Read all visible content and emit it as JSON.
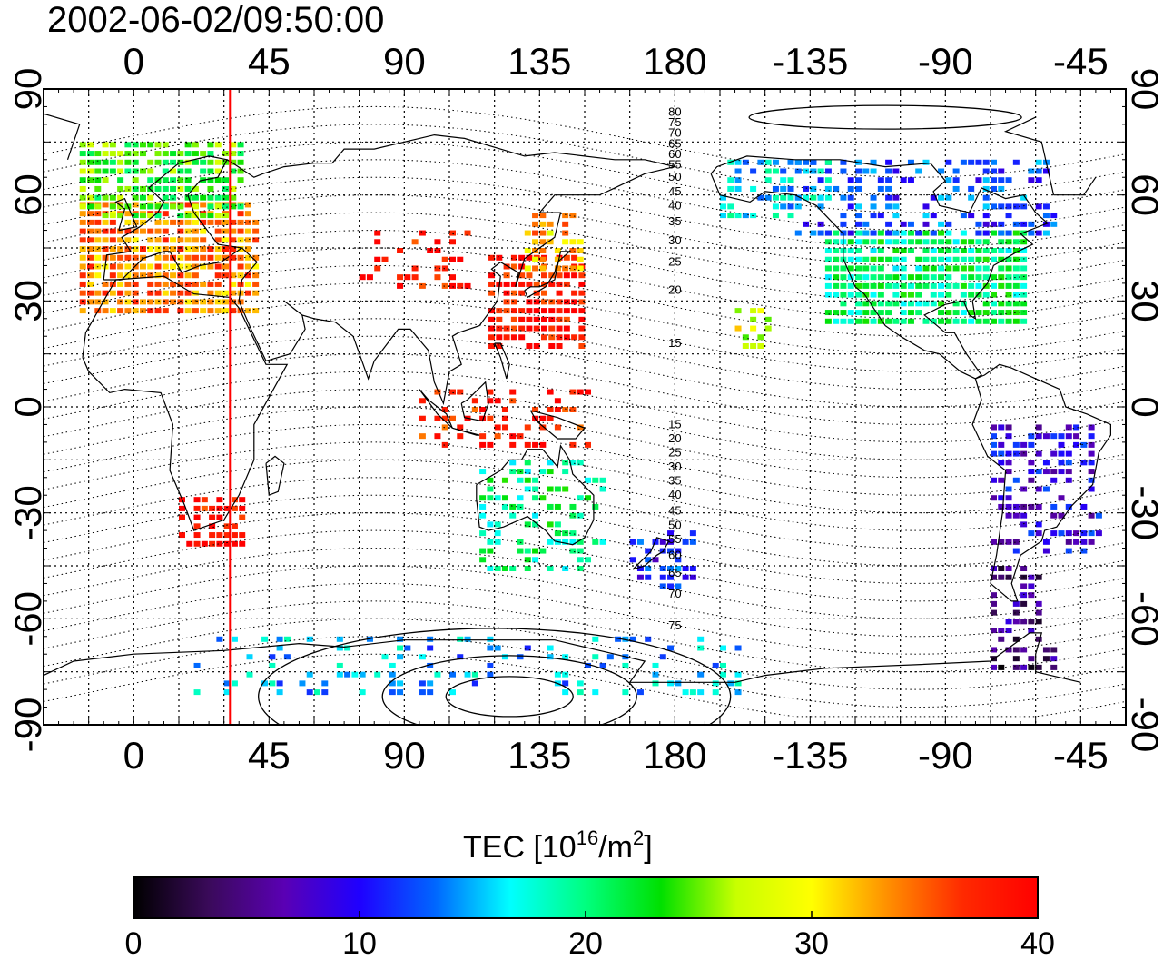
{
  "title": "2002-06-02/09:50:00",
  "map": {
    "projection": "equirectangular",
    "lon_center": 150,
    "x_ticks": [
      "0",
      "45",
      "90",
      "135",
      "180",
      "-135",
      "-90",
      "-45"
    ],
    "y_ticks_left": [
      "90",
      "60",
      "30",
      "0",
      "-30",
      "-60",
      "-90"
    ],
    "y_ticks_right": [
      "90",
      "60",
      "30",
      "0",
      "-30",
      "-60",
      "-90"
    ],
    "grid": "dotted, every 15 degrees",
    "meridian_marker": {
      "lon": 32,
      "color": "#ff0000"
    },
    "contour_labels_north": [
      "80",
      "75",
      "70",
      "65",
      "60",
      "55",
      "50",
      "45",
      "40",
      "35",
      "30",
      "25",
      "20",
      "15"
    ],
    "contour_labels_south": [
      "15",
      "20",
      "25",
      "30",
      "35",
      "40",
      "45",
      "50",
      "55",
      "60",
      "65",
      "70",
      "75"
    ]
  },
  "colorbar": {
    "units_main": "TEC  [10",
    "units_sup1": "16",
    "units_mid": "/m",
    "units_sup2": "2",
    "units_end": "]",
    "ticks": [
      "0",
      "10",
      "20",
      "30",
      "40"
    ],
    "range": [
      0,
      40
    ],
    "colormap": [
      "#000000",
      "#3a0a5a",
      "#5a00b4",
      "#1f00ff",
      "#0066ff",
      "#00ffff",
      "#00ff7f",
      "#00e000",
      "#c8ff00",
      "#ffff00",
      "#ff9000",
      "#ff2a00",
      "#ff0000"
    ]
  },
  "tec_regions": [
    {
      "name": "europe",
      "lon": [
        -18,
        40
      ],
      "lat": [
        28,
        58
      ],
      "value": 34,
      "density": 0.9
    },
    {
      "name": "northern-europe",
      "lon": [
        -18,
        35
      ],
      "lat": [
        55,
        75
      ],
      "value": 24,
      "density": 0.8
    },
    {
      "name": "asia-midlat",
      "lon": [
        75,
        110
      ],
      "lat": [
        35,
        52
      ],
      "value": 39,
      "density": 0.4
    },
    {
      "name": "east-asia",
      "lon": [
        118,
        150
      ],
      "lat": [
        18,
        45
      ],
      "value": 39,
      "density": 0.8
    },
    {
      "name": "japan-north",
      "lon": [
        130,
        148
      ],
      "lat": [
        40,
        55
      ],
      "value": 32,
      "density": 0.7
    },
    {
      "name": "southern-africa",
      "lon": [
        15,
        37
      ],
      "lat": [
        -38,
        -25
      ],
      "value": 39,
      "density": 0.7
    },
    {
      "name": "australia",
      "lon": [
        115,
        155
      ],
      "lat": [
        -45,
        -15
      ],
      "value": 20,
      "density": 0.4
    },
    {
      "name": "new-zealand",
      "lon": [
        165,
        185
      ],
      "lat": [
        -50,
        -35
      ],
      "value": 11,
      "density": 0.5
    },
    {
      "name": "north-america",
      "lon": [
        -130,
        -65
      ],
      "lat": [
        25,
        50
      ],
      "value": 20,
      "density": 0.9
    },
    {
      "name": "canada",
      "lon": [
        -140,
        -55
      ],
      "lat": [
        50,
        72
      ],
      "value": 12,
      "density": 0.5
    },
    {
      "name": "alaska",
      "lon": [
        -165,
        -130
      ],
      "lat": [
        55,
        72
      ],
      "value": 16,
      "density": 0.5
    },
    {
      "name": "south-america",
      "lon": [
        -75,
        -38
      ],
      "lat": [
        -40,
        -5
      ],
      "value": 9,
      "density": 0.5
    },
    {
      "name": "patagonia",
      "lon": [
        -75,
        -60
      ],
      "lat": [
        -65,
        -45
      ],
      "value": 5,
      "density": 0.5
    },
    {
      "name": "antarctic-peninsula",
      "lon": [
        -75,
        -55
      ],
      "lat": [
        -73,
        -66
      ],
      "value": 4,
      "density": 0.7
    },
    {
      "name": "southern-ocean",
      "lon": [
        20,
        200
      ],
      "lat": [
        -80,
        -65
      ],
      "value": 15,
      "density": 0.2
    },
    {
      "name": "hawaii",
      "lon": [
        -160,
        -150
      ],
      "lat": [
        18,
        28
      ],
      "value": 28,
      "density": 0.6
    },
    {
      "name": "indonesia",
      "lon": [
        95,
        150
      ],
      "lat": [
        -10,
        5
      ],
      "value": 38,
      "density": 0.3
    }
  ]
}
